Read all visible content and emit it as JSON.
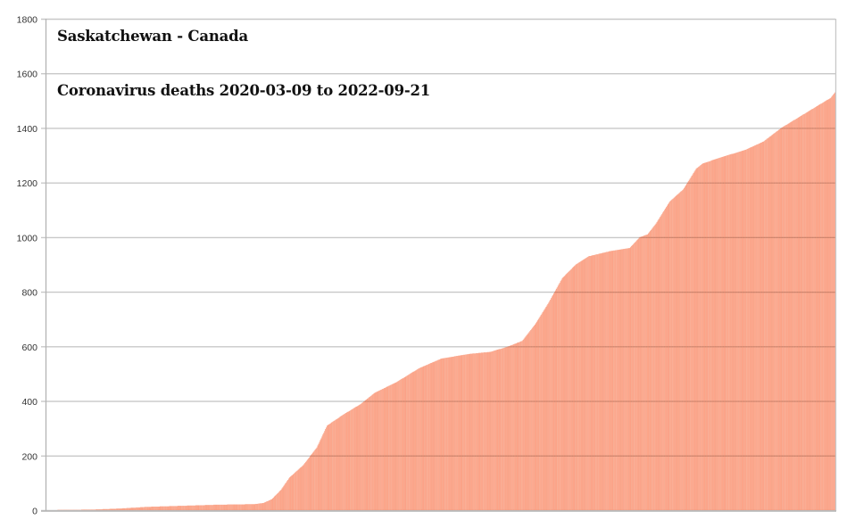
{
  "chart_data": {
    "type": "bar",
    "title": "Saskatchewan - Canada",
    "subtitle": "Coronavirus deaths 2020-03-09 to 2022-09-21",
    "xlabel": "",
    "ylabel": "",
    "x_start": "2020-03-09",
    "x_end": "2022-09-21",
    "num_days": 927,
    "ylim": [
      0,
      1800
    ],
    "yticks": [
      0,
      200,
      400,
      600,
      800,
      1000,
      1200,
      1400,
      1600,
      1800
    ],
    "ytick_labels": [
      "0",
      "200",
      "400",
      "600",
      "800",
      "1000",
      "1200",
      "1400",
      "1600",
      "1800"
    ],
    "grid": true,
    "legend": "none",
    "bar_color": "#fca58a",
    "bar_stripe_color": "#f4906f",
    "grid_color": "#c8c8c8",
    "cumulative_deaths_by_day_index": [
      [
        0,
        0
      ],
      [
        55,
        2
      ],
      [
        87,
        6
      ],
      [
        118,
        12
      ],
      [
        160,
        16
      ],
      [
        202,
        20
      ],
      [
        244,
        22
      ],
      [
        255,
        26
      ],
      [
        265,
        40
      ],
      [
        276,
        75
      ],
      [
        286,
        120
      ],
      [
        302,
        165
      ],
      [
        318,
        230
      ],
      [
        330,
        310
      ],
      [
        349,
        350
      ],
      [
        370,
        390
      ],
      [
        386,
        430
      ],
      [
        412,
        470
      ],
      [
        438,
        520
      ],
      [
        464,
        555
      ],
      [
        496,
        572
      ],
      [
        522,
        580
      ],
      [
        543,
        600
      ],
      [
        559,
        620
      ],
      [
        574,
        680
      ],
      [
        590,
        760
      ],
      [
        606,
        850
      ],
      [
        622,
        900
      ],
      [
        637,
        930
      ],
      [
        664,
        950
      ],
      [
        685,
        960
      ],
      [
        697,
        1000
      ],
      [
        706,
        1010
      ],
      [
        716,
        1050
      ],
      [
        724,
        1090
      ],
      [
        732,
        1130
      ],
      [
        739,
        1150
      ],
      [
        748,
        1175
      ],
      [
        756,
        1215
      ],
      [
        763,
        1250
      ],
      [
        771,
        1270
      ],
      [
        790,
        1290
      ],
      [
        821,
        1320
      ],
      [
        842,
        1350
      ],
      [
        863,
        1400
      ],
      [
        884,
        1440
      ],
      [
        905,
        1480
      ],
      [
        921,
        1510
      ],
      [
        926,
        1530
      ]
    ],
    "final_value": 1530
  }
}
